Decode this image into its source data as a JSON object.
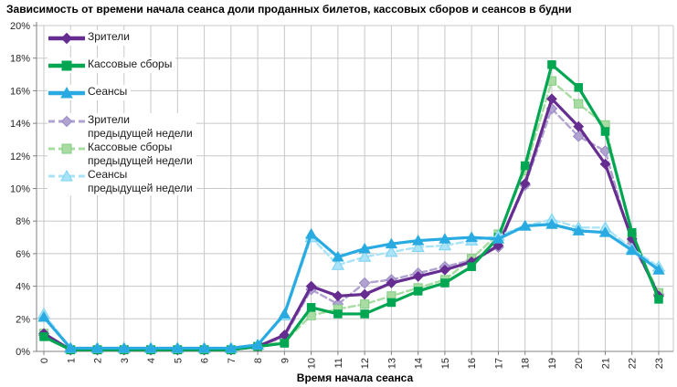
{
  "title": "Зависимость от времени начала сеанса доли проданных билетов, кассовых сборов и сеансов в будни",
  "chart_data": {
    "type": "line",
    "title": "Зависимость от времени начала сеанса доли проданных билетов, кассовых сборов и сеансов в будни",
    "xlabel": "Время начала сеанса",
    "ylabel": "",
    "x": [
      0,
      1,
      2,
      3,
      4,
      5,
      6,
      7,
      8,
      9,
      10,
      11,
      12,
      13,
      14,
      15,
      16,
      17,
      18,
      19,
      20,
      21,
      22,
      23
    ],
    "x_tick_labels": [
      "0",
      "1",
      "2",
      "3",
      "4",
      "5",
      "6",
      "7",
      "8",
      "9",
      "10",
      "11",
      "12",
      "13",
      "14",
      "15",
      "16",
      "17",
      "18",
      "19",
      "20",
      "21",
      "22",
      "23"
    ],
    "ylim": [
      0,
      20
    ],
    "ytick_step": 2,
    "y_tick_labels": [
      "0%",
      "2%",
      "4%",
      "6%",
      "8%",
      "10%",
      "12%",
      "14%",
      "16%",
      "18%",
      "20%"
    ],
    "grid": true,
    "legend_position": "top-left-inside",
    "series": [
      {
        "key": "viewers",
        "name": "Зрители",
        "legend_lines": [
          "Зрители"
        ],
        "color": "#662D91",
        "marker": "diamond",
        "marker_stroke": "#662D91",
        "dash": false,
        "values": [
          1.1,
          0.1,
          0.1,
          0.1,
          0.1,
          0.1,
          0.1,
          0.1,
          0.3,
          1.0,
          4.0,
          3.4,
          3.5,
          4.2,
          4.6,
          5.0,
          5.5,
          6.5,
          10.3,
          15.5,
          13.8,
          11.5,
          6.9,
          3.4
        ]
      },
      {
        "key": "boxoffice",
        "name": "Кассовые сборы",
        "legend_lines": [
          "Кассовые сборы"
        ],
        "color": "#00A651",
        "marker": "square",
        "marker_stroke": "#00A651",
        "dash": false,
        "values": [
          0.9,
          0.1,
          0.1,
          0.1,
          0.1,
          0.1,
          0.1,
          0.1,
          0.3,
          0.5,
          2.7,
          2.3,
          2.3,
          3.0,
          3.7,
          4.2,
          5.2,
          7.0,
          11.4,
          17.6,
          16.2,
          13.5,
          7.3,
          3.2
        ]
      },
      {
        "key": "sessions",
        "name": "Сеансы",
        "legend_lines": [
          "Сеансы"
        ],
        "color": "#29ABE2",
        "marker": "triangle",
        "marker_stroke": "#29ABE2",
        "dash": false,
        "values": [
          2.1,
          0.2,
          0.2,
          0.2,
          0.2,
          0.2,
          0.2,
          0.2,
          0.4,
          2.3,
          7.2,
          5.8,
          6.3,
          6.6,
          6.8,
          6.9,
          7.0,
          6.9,
          7.7,
          7.8,
          7.4,
          7.3,
          6.2,
          5.0
        ]
      },
      {
        "key": "viewers-prev",
        "name": "Зрители предыдущей недели",
        "legend_lines": [
          "Зрители",
          "предыдущей недели"
        ],
        "color": "#B1A3D0",
        "marker": "diamond",
        "marker_stroke": "#9A87C4",
        "dash": true,
        "values": [
          1.0,
          0.1,
          0.1,
          0.1,
          0.1,
          0.1,
          0.1,
          0.1,
          0.3,
          0.9,
          3.8,
          2.9,
          4.2,
          4.4,
          4.8,
          5.2,
          5.6,
          6.4,
          10.2,
          14.9,
          13.2,
          12.3,
          6.6,
          3.5
        ]
      },
      {
        "key": "boxoffice-prev",
        "name": "Кассовые сборы предыдущей недели",
        "legend_lines": [
          "Кассовые сборы",
          "предыдущей недели"
        ],
        "color": "#A9DCA2",
        "marker": "square",
        "marker_stroke": "#83CE84",
        "dash": true,
        "values": [
          1.1,
          0.1,
          0.1,
          0.1,
          0.1,
          0.1,
          0.1,
          0.1,
          0.3,
          0.6,
          2.2,
          2.6,
          2.9,
          3.4,
          3.9,
          4.4,
          5.7,
          7.2,
          11.1,
          16.6,
          15.2,
          13.9,
          7.0,
          3.6
        ]
      },
      {
        "key": "sessions-prev",
        "name": "Сеансы предыдущей недели",
        "legend_lines": [
          "Сеансы",
          "предыдущей недели"
        ],
        "color": "#A9E3F8",
        "marker": "triangle",
        "marker_stroke": "#7BD2F2",
        "dash": true,
        "values": [
          2.3,
          0.2,
          0.2,
          0.2,
          0.2,
          0.2,
          0.2,
          0.2,
          0.4,
          2.2,
          7.0,
          5.3,
          5.8,
          6.1,
          6.4,
          6.5,
          6.8,
          7.1,
          7.7,
          8.1,
          7.6,
          7.6,
          6.3,
          5.2
        ]
      }
    ]
  },
  "colors": {
    "grid": "#C8C8C8",
    "axis": "#808080",
    "tick_text": "#262626",
    "title_text": "#000000",
    "background": "#FFFFFF"
  }
}
